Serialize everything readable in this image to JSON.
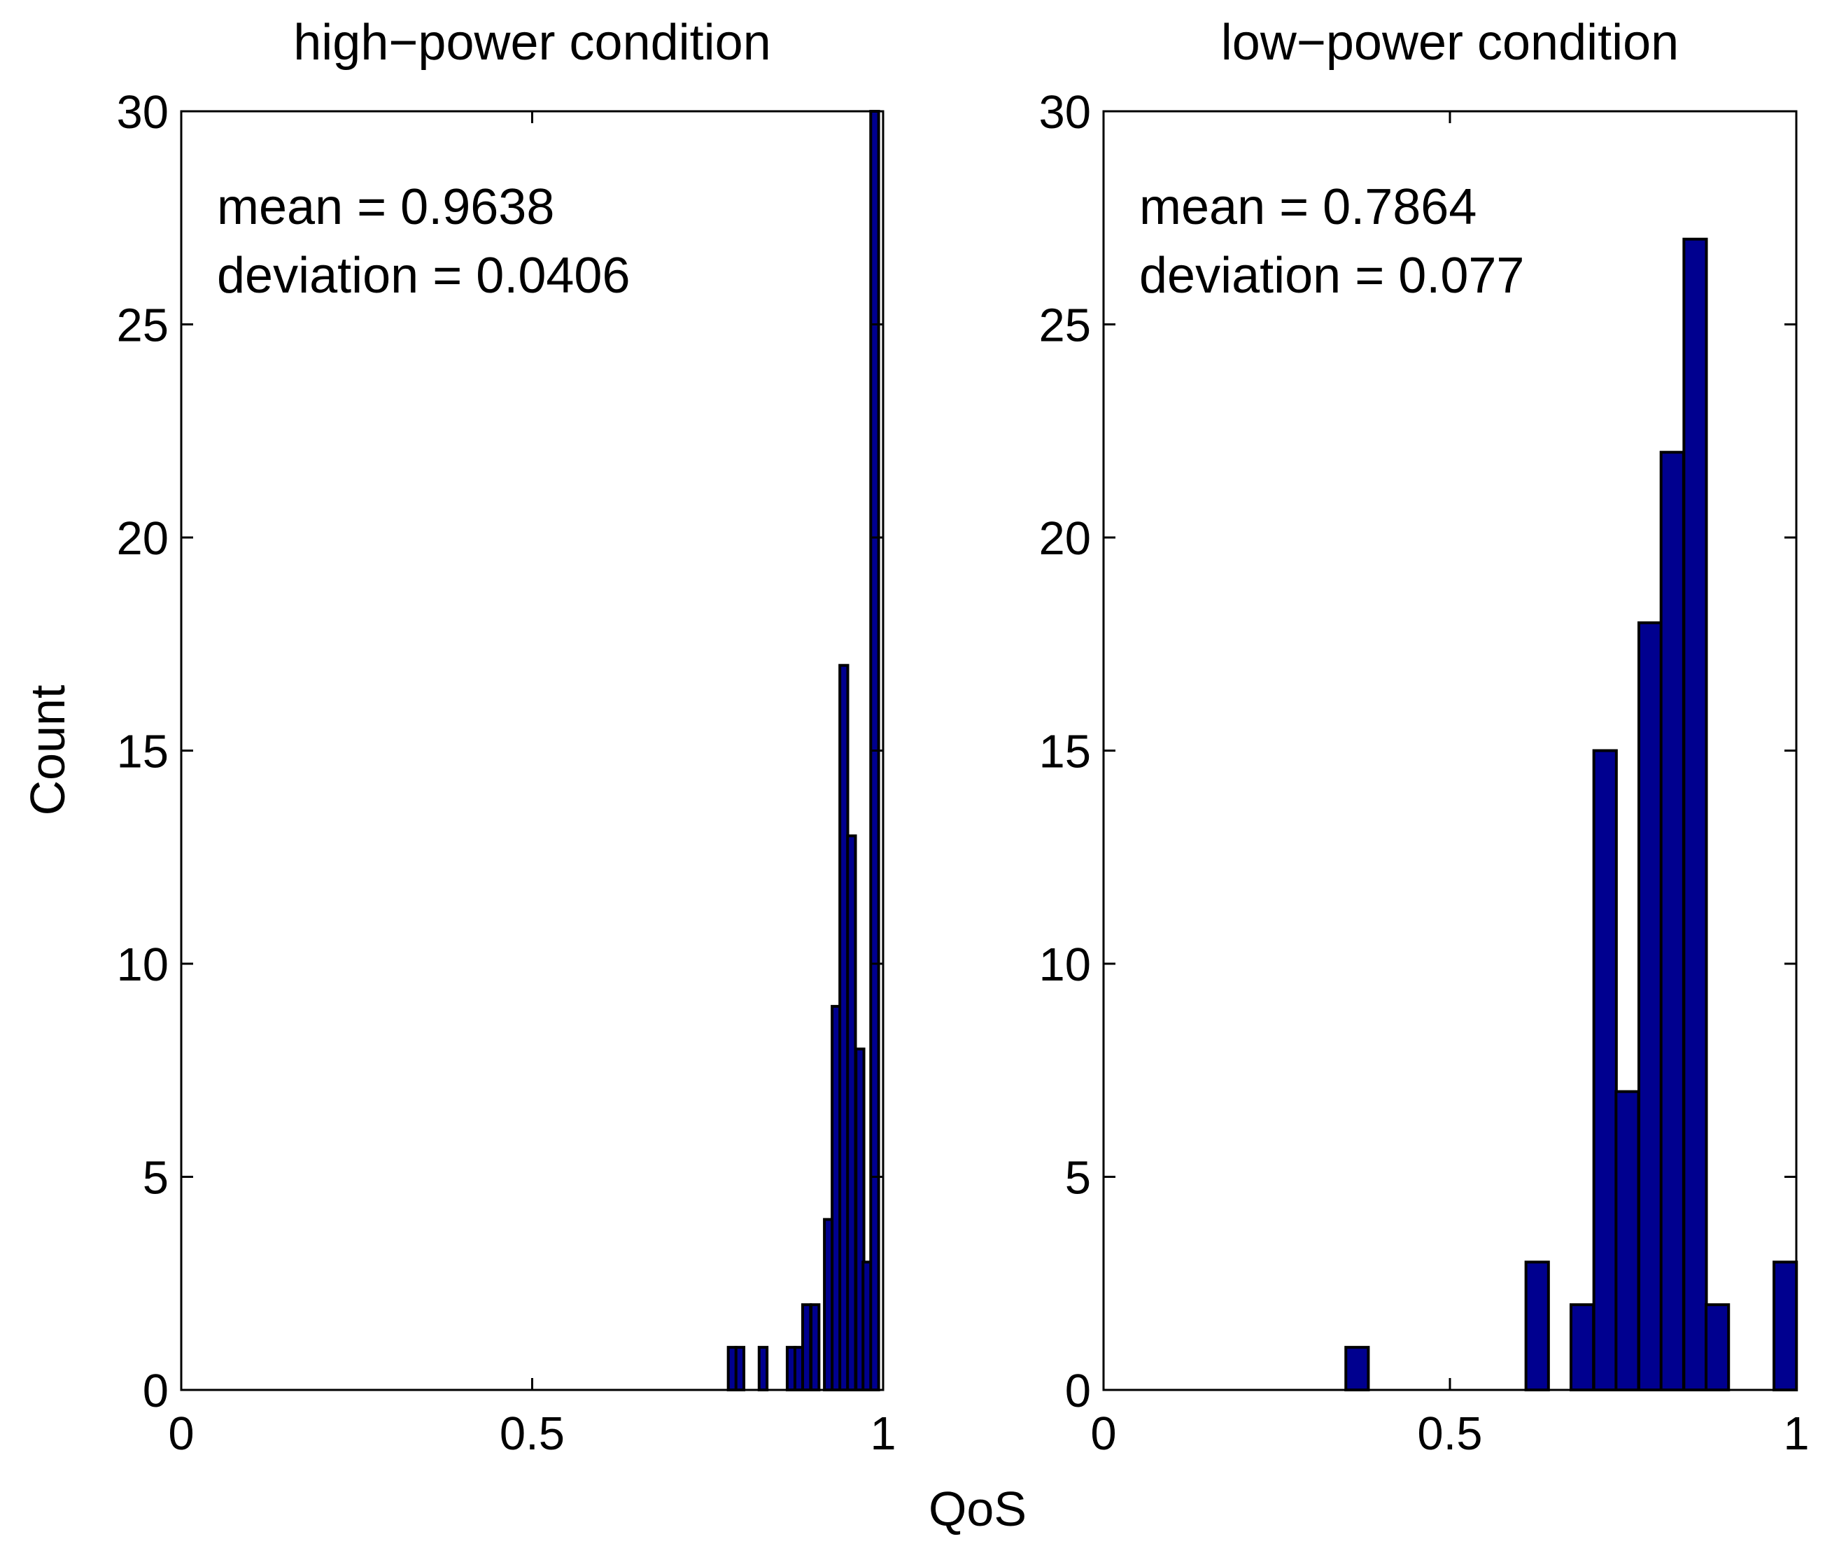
{
  "chart_data": [
    {
      "type": "bar",
      "title": "high−power condition",
      "xlabel": "QoS",
      "ylabel": "Count",
      "xlim": [
        0,
        1
      ],
      "ylim": [
        0,
        30
      ],
      "xticks": [
        "0",
        "0.5",
        "1"
      ],
      "yticks": [
        "0",
        "5",
        "10",
        "15",
        "20",
        "25",
        "30"
      ],
      "bin_width": 0.0113,
      "x": [
        0.785,
        0.796,
        0.829,
        0.869,
        0.88,
        0.891,
        0.903,
        0.922,
        0.933,
        0.944,
        0.955,
        0.967,
        0.977,
        0.988
      ],
      "values": [
        1,
        1,
        1,
        1,
        1,
        2,
        2,
        4,
        9,
        17,
        13,
        8,
        3,
        30
      ],
      "annotations": [
        "mean = 0.9638",
        "deviation = 0.0406"
      ],
      "grid": false
    },
    {
      "type": "bar",
      "title": "low−power condition",
      "xlim": [
        0,
        1
      ],
      "ylim": [
        0,
        30
      ],
      "xticks": [
        "0",
        "0.5",
        "1"
      ],
      "yticks": [
        "0",
        "5",
        "10",
        "15",
        "20",
        "25",
        "30"
      ],
      "bin_width": 0.0325,
      "x": [
        0.366,
        0.626,
        0.691,
        0.724,
        0.756,
        0.789,
        0.821,
        0.854,
        0.886,
        0.984
      ],
      "values": [
        1,
        3,
        2,
        15,
        7,
        18,
        22,
        27,
        2,
        3
      ],
      "annotations": [
        "mean = 0.7864",
        "deviation = 0.077"
      ],
      "grid": false
    }
  ],
  "colors": {
    "bar_fill": "#00008f",
    "bar_edge": "#000000"
  }
}
